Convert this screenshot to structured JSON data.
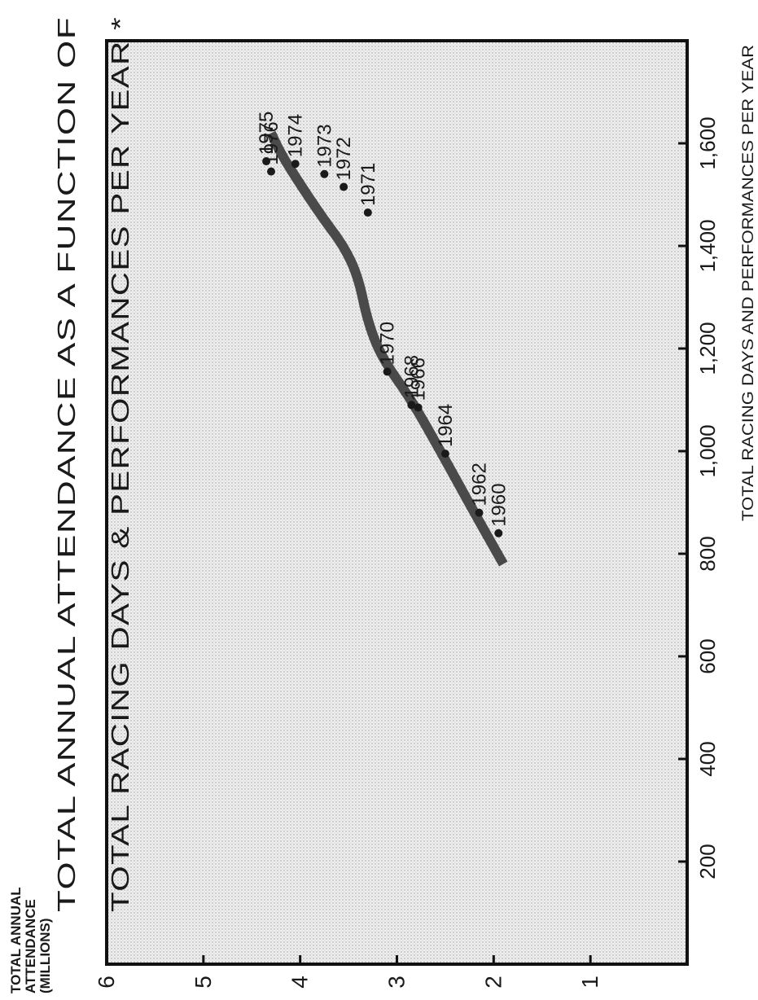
{
  "chart_data": {
    "type": "scatter",
    "title_line1": "TOTAL ANNUAL ATTENDANCE AS A FUNCTION OF",
    "title_line2": "TOTAL RACING DAYS & PERFORMANCES PER YEAR *",
    "xlabel": "TOTAL RACING DAYS AND PERFORMANCES PER YEAR",
    "ylabel_lines": [
      "TOTAL ANNUAL",
      "ATTENDANCE",
      "(MILLIONS)"
    ],
    "xlim": [
      0,
      1800
    ],
    "ylim": [
      0,
      6
    ],
    "x_ticks": [
      200,
      400,
      600,
      800,
      1000,
      1200,
      1400,
      1600
    ],
    "x_tick_labels": [
      "200",
      "400",
      "600",
      "800",
      "1,000",
      "1,200",
      "1,400",
      "1,600"
    ],
    "y_ticks": [
      1,
      2,
      3,
      4,
      5,
      6
    ],
    "y_tick_labels": [
      "1",
      "2",
      "3",
      "4",
      "5",
      "6"
    ],
    "grid": false,
    "rotated": true,
    "points": [
      {
        "label": "1960",
        "x": 840,
        "y": 1.95
      },
      {
        "label": "1962",
        "x": 880,
        "y": 2.15
      },
      {
        "label": "1964",
        "x": 995,
        "y": 2.5
      },
      {
        "label": "1966",
        "x": 1085,
        "y": 2.78
      },
      {
        "label": "1968",
        "x": 1090,
        "y": 2.85
      },
      {
        "label": "1970",
        "x": 1155,
        "y": 3.1
      },
      {
        "label": "1971",
        "x": 1465,
        "y": 3.3
      },
      {
        "label": "1972",
        "x": 1515,
        "y": 3.55
      },
      {
        "label": "1973",
        "x": 1540,
        "y": 3.75
      },
      {
        "label": "1974",
        "x": 1560,
        "y": 4.05
      },
      {
        "label": "1975",
        "x": 1565,
        "y": 4.35
      },
      {
        "label": "1976",
        "x": 1545,
        "y": 4.3
      }
    ],
    "trend": {
      "x": [
        780,
        880,
        1000,
        1100,
        1180,
        1250,
        1340,
        1400,
        1450,
        1520,
        1580,
        1620
      ],
      "y": [
        1.9,
        2.2,
        2.55,
        2.85,
        3.15,
        3.3,
        3.4,
        3.55,
        3.75,
        4.0,
        4.2,
        4.3
      ]
    }
  }
}
